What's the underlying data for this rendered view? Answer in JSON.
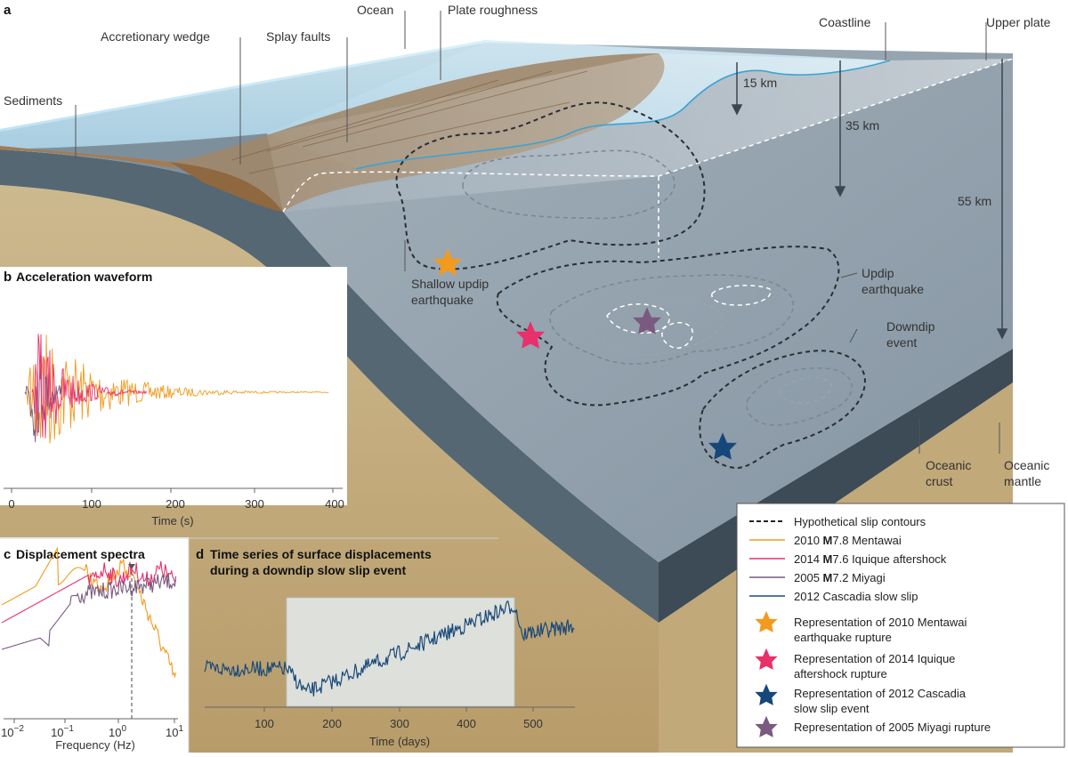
{
  "panels": {
    "a": {
      "letter": "a",
      "labels": {
        "sediments": "Sediments",
        "accretionary_wedge": "Accretionary wedge",
        "splay_faults": "Splay faults",
        "ocean": "Ocean",
        "plate_roughness": "Plate roughness",
        "coastline": "Coastline",
        "upper_plate": "Upper plate",
        "shallow_updip_1": "Shallow updip",
        "shallow_updip_2": "earthquake",
        "updip_1": "Updip",
        "updip_2": "earthquake",
        "downdip_1": "Downdip",
        "downdip_2": "event",
        "oceanic_crust_1": "Oceanic",
        "oceanic_crust_2": "crust",
        "oceanic_mantle_1": "Oceanic",
        "oceanic_mantle_2": "mantle"
      },
      "depths": {
        "d15": "15 km",
        "d35": "35 km",
        "d55": "55 km"
      }
    },
    "b": {
      "letter": "b",
      "title": "Acceleration waveform",
      "xlabel": "Time (s)",
      "xticks": [
        "0",
        "100",
        "200",
        "300",
        "400"
      ]
    },
    "c": {
      "letter": "c",
      "title": "Displacement spectra",
      "xlabel": "Frequency (Hz)",
      "xticks": [
        {
          "base": "10",
          "exp": "−2"
        },
        {
          "base": "10",
          "exp": "−1"
        },
        {
          "base": "10",
          "exp": "0"
        },
        {
          "base": "10",
          "exp": "1"
        }
      ]
    },
    "d": {
      "letter": "d",
      "title_1": "Time series of surface displacements",
      "title_2": "during a downdip slow slip event",
      "xlabel": "Time (days)",
      "xticks": [
        "100",
        "200",
        "300",
        "400",
        "500"
      ]
    }
  },
  "legend": {
    "contours": "Hypothetical slip contours",
    "lines": [
      {
        "prefix": "2010 ",
        "mag": "M",
        "suffix": "7.8 Mentawai",
        "color": "#f29a1d"
      },
      {
        "prefix": "2014 ",
        "mag": "M",
        "suffix": "7.6 Iquique aftershock",
        "color": "#e8306a"
      },
      {
        "prefix": "2005 ",
        "mag": "M",
        "suffix": "7.2 Miyagi",
        "color": "#7a5a80"
      },
      {
        "prefix": "2012 Cascadia slow slip",
        "mag": "",
        "suffix": "",
        "color": "#1a4a7a"
      }
    ],
    "stars": [
      {
        "line1": "Representation of 2010 Mentawai",
        "line2": "earthquake rupture",
        "color": "#f29a1d"
      },
      {
        "line1": "Representation of 2014 Iquique",
        "line2": "aftershock rupture",
        "color": "#e8306a"
      },
      {
        "line1": "Representation of 2012 Cascadia",
        "line2": "slow slip event",
        "color": "#16477a"
      },
      {
        "line1": "Representation of 2005 Miyagi rupture",
        "line2": "",
        "color": "#7a5a80"
      }
    ]
  },
  "colors": {
    "mentawai": "#f29a1d",
    "iquique": "#e8306a",
    "miyagi": "#7a5a80",
    "cascadia": "#1a4a7a",
    "slab_top": "#8e9ca8",
    "crust": "#3f4f5a",
    "mantle": "#c9b48a",
    "ocean": "#bfe2f2"
  }
}
